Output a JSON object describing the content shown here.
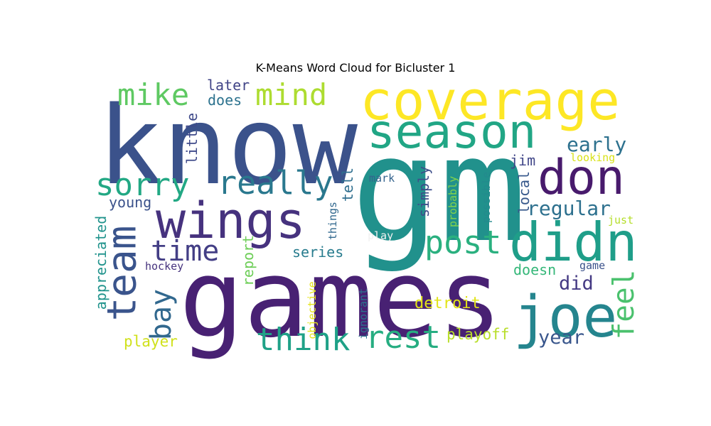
{
  "title": "K-Means Word Cloud for Bicluster 1",
  "words": [
    {
      "text": "know",
      "color": "#3b528b"
    },
    {
      "text": "gm",
      "color": "#21918c"
    },
    {
      "text": "games",
      "color": "#482173"
    },
    {
      "text": "coverage",
      "color": "#fde725"
    },
    {
      "text": "season",
      "color": "#21a685"
    },
    {
      "text": "wings",
      "color": "#46327e"
    },
    {
      "text": "don",
      "color": "#481a6c"
    },
    {
      "text": "didn",
      "color": "#1f9e89"
    },
    {
      "text": "joe",
      "color": "#25858e"
    },
    {
      "text": "team",
      "color": "#3a548c"
    },
    {
      "text": "mike",
      "color": "#5ec962"
    },
    {
      "text": "mind",
      "color": "#addc30"
    },
    {
      "text": "sorry",
      "color": "#22a884"
    },
    {
      "text": "really",
      "color": "#2a788e"
    },
    {
      "text": "post",
      "color": "#2ab07f"
    },
    {
      "text": "time",
      "color": "#433e85"
    },
    {
      "text": "think",
      "color": "#1fa187"
    },
    {
      "text": "rest",
      "color": "#26ad81"
    },
    {
      "text": "bay",
      "color": "#31688e"
    },
    {
      "text": "feel",
      "color": "#4ac16d"
    },
    {
      "text": "regular",
      "color": "#2d708e"
    },
    {
      "text": "early",
      "color": "#2d718e"
    },
    {
      "text": "year",
      "color": "#39568c"
    },
    {
      "text": "did",
      "color": "#443983"
    },
    {
      "text": "later",
      "color": "#414487"
    },
    {
      "text": "does",
      "color": "#2c728e"
    },
    {
      "text": "little",
      "color": "#3e4989"
    },
    {
      "text": "jim",
      "color": "#404688"
    },
    {
      "text": "looking",
      "color": "#d8e219"
    },
    {
      "text": "local",
      "color": "#38598c"
    },
    {
      "text": "mark",
      "color": "#33638d"
    },
    {
      "text": "tell",
      "color": "#2e6e8e"
    },
    {
      "text": "young",
      "color": "#3b528b"
    },
    {
      "text": "simply",
      "color": "#3d4e8a"
    },
    {
      "text": "probably",
      "color": "#84d44b"
    },
    {
      "text": "possible",
      "color": "#238a8d"
    },
    {
      "text": "just",
      "color": "#b5de2b"
    },
    {
      "text": "things",
      "color": "#31688e"
    },
    {
      "text": "play",
      "color": "#f1f1f1"
    },
    {
      "text": "appreciated",
      "color": "#20938c"
    },
    {
      "text": "report",
      "color": "#6ece58"
    },
    {
      "text": "series",
      "color": "#287c8e"
    },
    {
      "text": "hockey",
      "color": "#46337e"
    },
    {
      "text": "doesn",
      "color": "#35b779"
    },
    {
      "text": "game",
      "color": "#3b528b"
    },
    {
      "text": "objective",
      "color": "#e5e419"
    },
    {
      "text": "ignorant",
      "color": "#2c728e"
    },
    {
      "text": "detroit",
      "color": "#e2e418"
    },
    {
      "text": "playoff",
      "color": "#b8de29"
    },
    {
      "text": "player",
      "color": "#d0e11c"
    }
  ]
}
